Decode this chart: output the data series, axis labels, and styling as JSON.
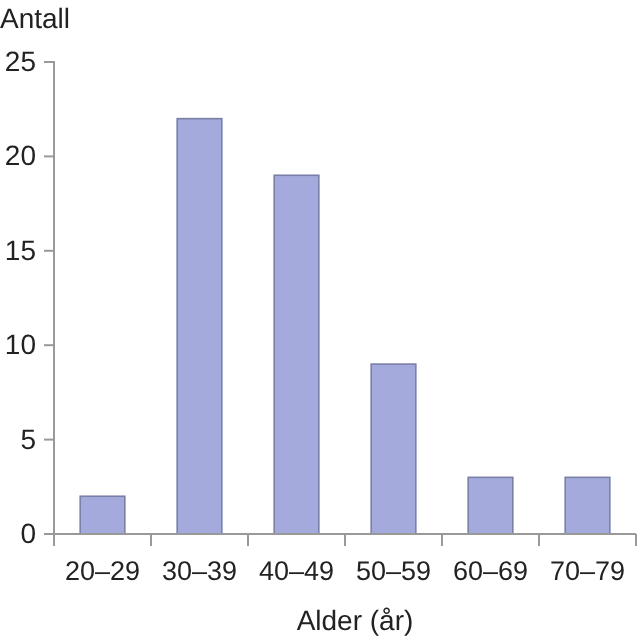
{
  "chart_data": {
    "type": "bar",
    "xlabel": "Alder (år)",
    "ylabel": "Antall",
    "categories": [
      "20–29",
      "30–39",
      "40–49",
      "50–59",
      "60–69",
      "70–79"
    ],
    "values": [
      2,
      22,
      19,
      9,
      3,
      3
    ],
    "color": "#a4aadb",
    "ylim": [
      0,
      25
    ],
    "yticks": [
      0,
      5,
      10,
      15,
      20,
      25
    ],
    "grid": false
  }
}
